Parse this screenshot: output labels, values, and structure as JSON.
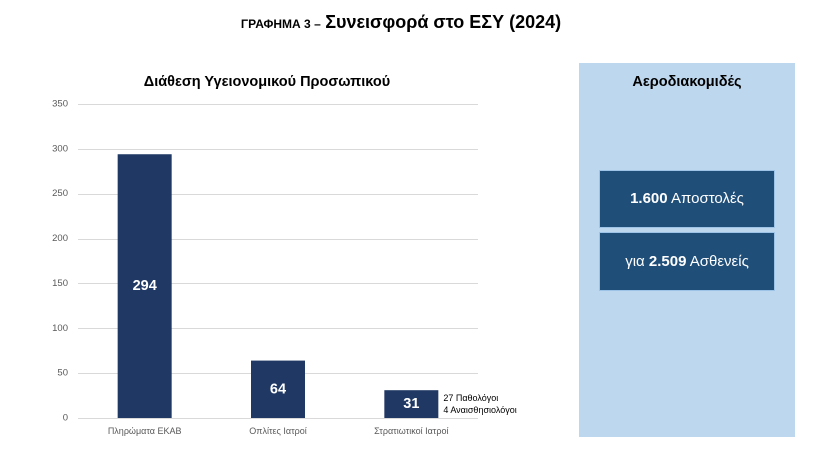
{
  "header": {
    "label": "ΓΡΑΦΗΜΑ 3 –",
    "title": "Συνεισφορά στο ΕΣΥ (2024)"
  },
  "chart_data": {
    "type": "bar",
    "title": "Διάθεση Υγειονομικού Προσωπικού",
    "categories": [
      "Πληρώματα ΕΚΑΒ",
      "Οπλίτες Ιατροί",
      "Στρατιωτικοί Ιατροί"
    ],
    "values": [
      294,
      64,
      31
    ],
    "ylim": [
      0,
      350
    ],
    "yticks": [
      0,
      50,
      100,
      150,
      200,
      250,
      300,
      350
    ],
    "grid": true,
    "bar_color": "#1f3864",
    "annotations": [
      {
        "category_index": 2,
        "lines": [
          "27 Παθολόγοι",
          "4 Αναισθησιολόγοι"
        ]
      }
    ]
  },
  "panel": {
    "title": "Αεροδιακομιδές",
    "background_color": "#bdd7ee",
    "box_color": "#1f4e79",
    "missions": {
      "value": "1.600",
      "label": "Αποστολές"
    },
    "patients": {
      "lead": "για",
      "value": "2.509",
      "label": "Ασθενείς"
    }
  }
}
